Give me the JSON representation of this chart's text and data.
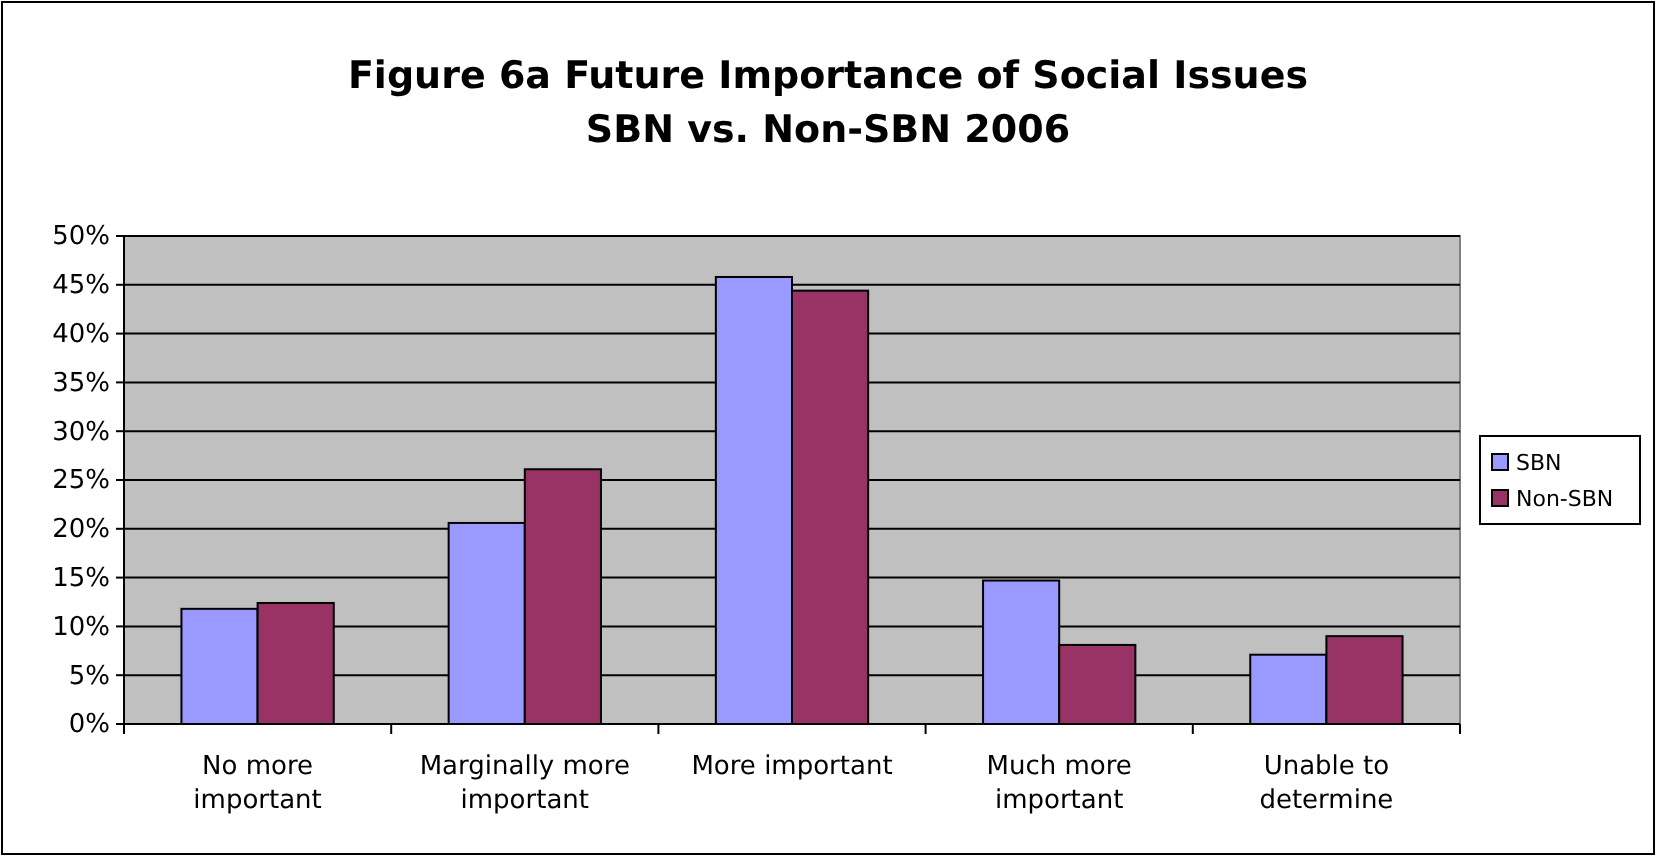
{
  "chart_data": {
    "type": "bar",
    "title": "Figure 6a Future Importance of Social Issues\nSBN vs. Non-SBN 2006",
    "categories": [
      "No more important",
      "Marginally more important",
      "More important",
      "Much more important",
      "Unable to determine"
    ],
    "series": [
      {
        "name": "SBN",
        "color": "#9999ff",
        "values": [
          11.8,
          20.6,
          45.8,
          14.7,
          7.1
        ]
      },
      {
        "name": "Non-SBN",
        "color": "#993366",
        "values": [
          12.4,
          26.1,
          44.4,
          8.1,
          9.0
        ]
      }
    ],
    "ylim": [
      0,
      50
    ],
    "yticks": [
      {
        "value": 0,
        "label": "0%"
      },
      {
        "value": 5,
        "label": "5%"
      },
      {
        "value": 10,
        "label": "10%"
      },
      {
        "value": 15,
        "label": "15%"
      },
      {
        "value": 20,
        "label": "20%"
      },
      {
        "value": 25,
        "label": "25%"
      },
      {
        "value": 30,
        "label": "30%"
      },
      {
        "value": 35,
        "label": "35%"
      },
      {
        "value": 40,
        "label": "40%"
      },
      {
        "value": 45,
        "label": "45%"
      },
      {
        "value": 50,
        "label": "50%"
      }
    ],
    "grid": "y",
    "legend": "right"
  }
}
